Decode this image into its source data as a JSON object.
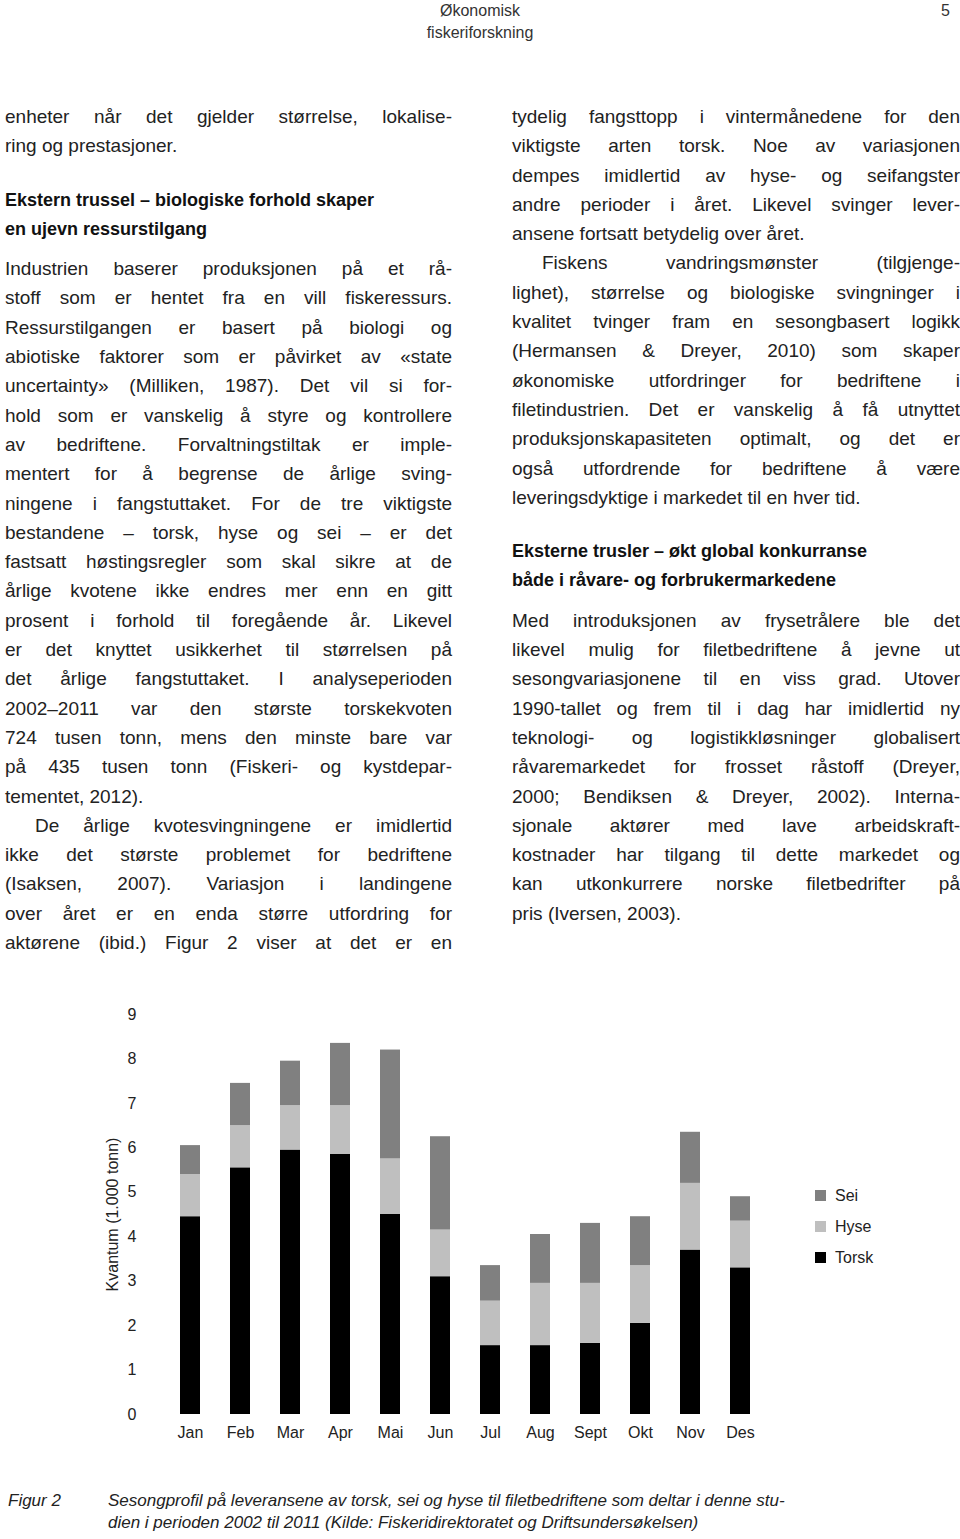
{
  "header": {
    "lines": [
      "Økonomisk",
      "fiskeriforskning"
    ],
    "page_number": "5"
  },
  "columns": [
    [
      {
        "paragraph": [
          "enheter når det gjelder størrelse, lokalise-",
          "ring og prestasjoner."
        ],
        "indent": false
      },
      {
        "heading": [
          "Ekstern trussel – biologiske forhold skaper",
          "en ujevn ressurstilgang"
        ]
      },
      {
        "paragraph": [
          "Industrien baserer produksjonen på et rå-",
          "stoff som er hentet fra en vill fiskeressurs.",
          "Ressurstilgangen er basert på biologi og",
          "abiotiske faktorer som er påvirket av «state",
          "uncertainty» (Milliken, 1987). Det vil si for-",
          "hold som er vanskelig å styre og kontrollere",
          "av bedriftene. Forvaltningstiltak er imple-",
          "mentert for å begrense de årlige sving-",
          "ningene i fangstuttaket. For de tre viktigste",
          "bestandene – torsk, hyse og sei – er det",
          "fastsatt høstingsregler som skal sikre at de",
          "årlige kvotene ikke endres mer enn en gitt",
          "prosent i forhold til foregående år. Likevel",
          "er det knyttet usikkerhet til størrelsen på",
          "det årlige fangstuttaket. I analyseperioden",
          "2002–2011 var den største torskekvoten",
          "724 tusen tonn, mens den minste bare var",
          "på 435 tusen tonn (Fiskeri- og kystdepar-",
          "tementet, 2012)."
        ],
        "indent": false
      },
      {
        "paragraph": [
          "De årlige kvotesvingningene er imidlertid",
          "ikke det største problemet for bedriftene",
          "(Isaksen, 2007). Variasjon i landingene",
          "over året er en enda større utfordring for",
          "aktørene (ibid.) Figur 2 viser at det er en"
        ],
        "indent": true,
        "continues": true
      }
    ],
    [
      {
        "paragraph": [
          "tydelig fangsttopp i vintermånedene for den",
          "viktigste arten torsk. Noe av variasjonen",
          "dempes imidlertid av hyse- og seifangster",
          "andre perioder i året. Likevel svinger lever-",
          "ansene fortsatt betydelig over året."
        ],
        "indent": false
      },
      {
        "paragraph": [
          "Fiskens vandringsmønster (tilgjenge-",
          "lighet), størrelse og biologiske svingninger i",
          "kvalitet tvinger fram en sesongbasert logikk",
          "(Hermansen & Dreyer, 2010) som skaper",
          "økonomiske utfordringer for bedriftene i",
          "filetindustrien. Det er vanskelig å få utnyttet",
          "produksjonskapasiteten optimalt, og det er",
          "også utfordrende for bedriftene å være",
          "leveringsdyktige i markedet til en hver tid."
        ],
        "indent": true
      },
      {
        "heading": [
          "Eksterne trusler – økt global konkurranse",
          "både i råvare- og forbrukermarkedene"
        ]
      },
      {
        "paragraph": [
          "Med introduksjonen av frysetrålere ble det",
          "likevel mulig for filetbedriftene å jevne ut",
          "sesongvariasjonene til en viss grad. Utover",
          "1990-tallet og frem til i dag har imidlertid ny",
          "teknologi- og logistikkløsninger globalisert",
          "råvaremarkedet for frosset råstoff (Dreyer,",
          "2000; Bendiksen & Dreyer, 2002). Interna-",
          "sjonale aktører med lave arbeidskraft-",
          "kostnader har tilgang til dette markedet og",
          "kan utkonkurrere norske filetbedrifter på",
          "pris (Iversen, 2003)."
        ],
        "indent": false
      }
    ]
  ],
  "chart_data": {
    "type": "bar",
    "stacked": true,
    "ylabel": "Kvantum (1.000 tonn)",
    "categories": [
      "Jan",
      "Feb",
      "Mar",
      "Apr",
      "Mai",
      "Jun",
      "Jul",
      "Aug",
      "Sept",
      "Okt",
      "Nov",
      "Des"
    ],
    "series": [
      {
        "name": "Torsk",
        "color": "#000000",
        "values": [
          4.45,
          5.55,
          5.95,
          5.85,
          4.5,
          3.1,
          1.55,
          1.55,
          1.6,
          2.05,
          3.7,
          3.3
        ]
      },
      {
        "name": "Hyse",
        "color": "#bfbfbf",
        "values": [
          0.95,
          0.95,
          1.0,
          1.1,
          1.25,
          1.05,
          1.0,
          1.4,
          1.35,
          1.3,
          1.5,
          1.05
        ]
      },
      {
        "name": "Sei",
        "color": "#808080",
        "values": [
          0.65,
          0.95,
          1.0,
          1.4,
          2.45,
          2.1,
          0.8,
          1.1,
          1.35,
          1.1,
          1.15,
          0.55
        ]
      }
    ],
    "ylim": [
      0,
      9
    ],
    "yticks": [
      0,
      1,
      2,
      3,
      4,
      5,
      6,
      7,
      8,
      9
    ],
    "grid": false,
    "legend": "right"
  },
  "caption": {
    "label": "Figur 2",
    "lines": [
      "Sesongprofil på leveransene av torsk, sei og hyse til filetbedriftene som deltar i denne stu-",
      "dien i perioden 2002 til 2011 (Kilde: Fiskeridirektoratet og Driftsundersøkelsen)"
    ]
  }
}
